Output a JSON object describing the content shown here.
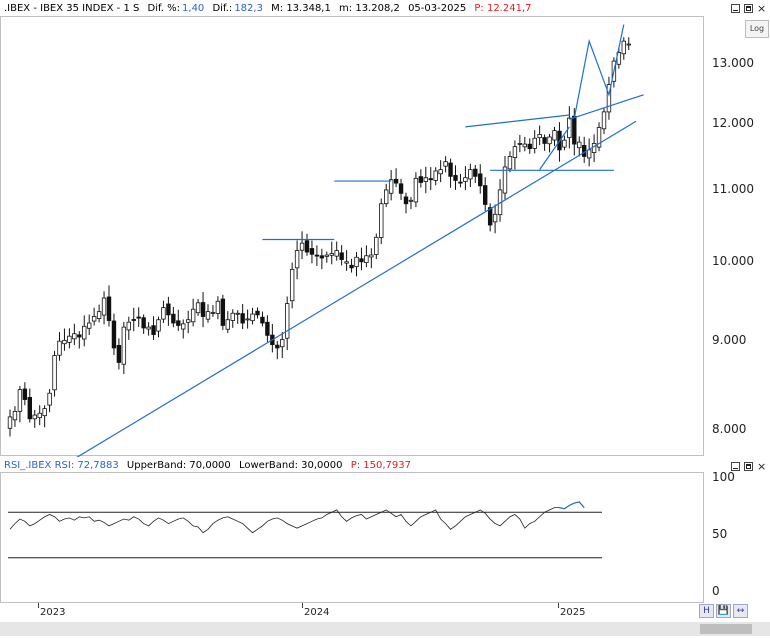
{
  "header": {
    "symbol": ".IBEX - IBEX 35 INDEX - 1 S",
    "dif_pct_label": "Dif. %:",
    "dif_pct": "1,40",
    "dif_label": "Dif.:",
    "dif": "182,3",
    "max": "M: 13.348,1",
    "min": "m: 13.208,2",
    "date": "05-03-2025",
    "pointer": "P: 12.241,7",
    "log_label": "Log",
    "close_glyph": "×"
  },
  "rsi_header": {
    "series": "RSI_.IBEX  RSI: 72,7883",
    "upper": "UpperBand: 70,0000",
    "lower": "LowerBand: 30,0000",
    "pointer": "P: 150,7937",
    "close_glyph": "×"
  },
  "bottom": {
    "btn_h": "H",
    "btn_save": "💾",
    "btn_zoom": "↔"
  },
  "colors": {
    "line_blue": "#1f6fd1",
    "candle": "#111111",
    "text_blue": "#2a64c8",
    "text_red": "#e02020"
  },
  "chart_data": [
    {
      "type": "candlestick",
      "yticks": [
        "13.000",
        "12.000",
        "11.000",
        "10.000",
        "9.000",
        "8.000"
      ],
      "ytick_values": [
        13000,
        12000,
        11000,
        10000,
        9000,
        8000
      ],
      "xticks": [
        "2023",
        "2024",
        "2025"
      ],
      "ylim": [
        7650,
        13700
      ],
      "scale": "log",
      "weeks": 117,
      "closes": [
        8140,
        8200,
        8440,
        8330,
        8120,
        8160,
        8180,
        8230,
        8400,
        8830,
        9000,
        9010,
        9060,
        9090,
        9050,
        9180,
        9220,
        9300,
        9360,
        9530,
        9250,
        8920,
        8750,
        9170,
        9230,
        9260,
        9280,
        9160,
        9170,
        9080,
        9260,
        9410,
        9320,
        9220,
        9190,
        9210,
        9260,
        9390,
        9470,
        9300,
        9360,
        9350,
        9490,
        9190,
        9260,
        9340,
        9340,
        9220,
        9270,
        9330,
        9320,
        9220,
        9070,
        8960,
        8920,
        9020,
        9460,
        9900,
        10150,
        10250,
        10130,
        10100,
        10080,
        10050,
        10090,
        10110,
        10150,
        10030,
        10000,
        9920,
        10060,
        10000,
        10080,
        10090,
        10330,
        10800,
        11000,
        11150,
        11100,
        10950,
        10800,
        10850,
        11170,
        11110,
        11180,
        11150,
        11280,
        11300,
        11420,
        11200,
        11140,
        11100,
        11180,
        11300,
        11200,
        11060,
        10790,
        10500,
        10650,
        11000,
        11340,
        11500,
        11650,
        11700,
        11690,
        11620,
        11780,
        11840,
        11700,
        11800,
        11900,
        11600,
        11750,
        12100,
        11690,
        11720,
        11500
      ],
      "closes_2025": [
        11600,
        11700,
        11950,
        12200,
        12650,
        13050,
        13200,
        13400,
        13349
      ],
      "trendlines": [
        {
          "name": "main-uptrend",
          "from": [
            13,
            7700
          ],
          "to": [
            126.5,
            12050
          ]
        },
        {
          "name": "range-top-2024",
          "from": [
            51,
            10300
          ],
          "to": [
            65.5,
            10300
          ]
        },
        {
          "name": "range-top-mid-2024",
          "from": [
            65.5,
            11130
          ],
          "to": [
            77,
            11130
          ]
        },
        {
          "name": "support-late-2024",
          "from": [
            97,
            11290
          ],
          "to": [
            122,
            11290
          ]
        },
        {
          "name": "channel-top",
          "from": [
            92,
            11960
          ],
          "to": [
            113,
            12150
          ]
        },
        {
          "name": "wedge-support",
          "from": [
            107,
            11300
          ],
          "to": [
            113,
            11960
          ]
        },
        {
          "name": "breakout-line",
          "from": [
            113,
            12080
          ],
          "to": [
            128,
            12480
          ]
        },
        {
          "name": "projection",
          "from": [
            114,
            12100
          ],
          "to": [
            117,
            13400
          ],
          "to2": [
            121,
            12480
          ],
          "to3": [
            124,
            13700
          ]
        }
      ]
    },
    {
      "type": "line",
      "name": "RSI",
      "yticks": [
        "100",
        "50",
        "0"
      ],
      "ytick_values": [
        100,
        50,
        0
      ],
      "ylim": [
        0,
        100
      ],
      "bands": [
        70,
        30
      ],
      "values": [
        55,
        60,
        64,
        62,
        58,
        60,
        63,
        66,
        68,
        66,
        62,
        64,
        65,
        63,
        66,
        65,
        66,
        62,
        63,
        61,
        58,
        60,
        62,
        64,
        63,
        66,
        64,
        60,
        58,
        62,
        65,
        63,
        60,
        62,
        64,
        65,
        62,
        58,
        57,
        52,
        55,
        60,
        63,
        65,
        66,
        64,
        62,
        60,
        56,
        52,
        55,
        58,
        62,
        64,
        65,
        63,
        60,
        58,
        56,
        58,
        60,
        62,
        64,
        65,
        68,
        70,
        72,
        66,
        62,
        65,
        67,
        68,
        64,
        66,
        68,
        70,
        72,
        69,
        66,
        68,
        62,
        58,
        62,
        66,
        68,
        70,
        72,
        64,
        60,
        55,
        58,
        62,
        66,
        68,
        70,
        72,
        69,
        64,
        60,
        58,
        62,
        66,
        68,
        64,
        56,
        60,
        62,
        66,
        70,
        72,
        74,
        74,
        73,
        76,
        78,
        79,
        74
      ]
    }
  ]
}
